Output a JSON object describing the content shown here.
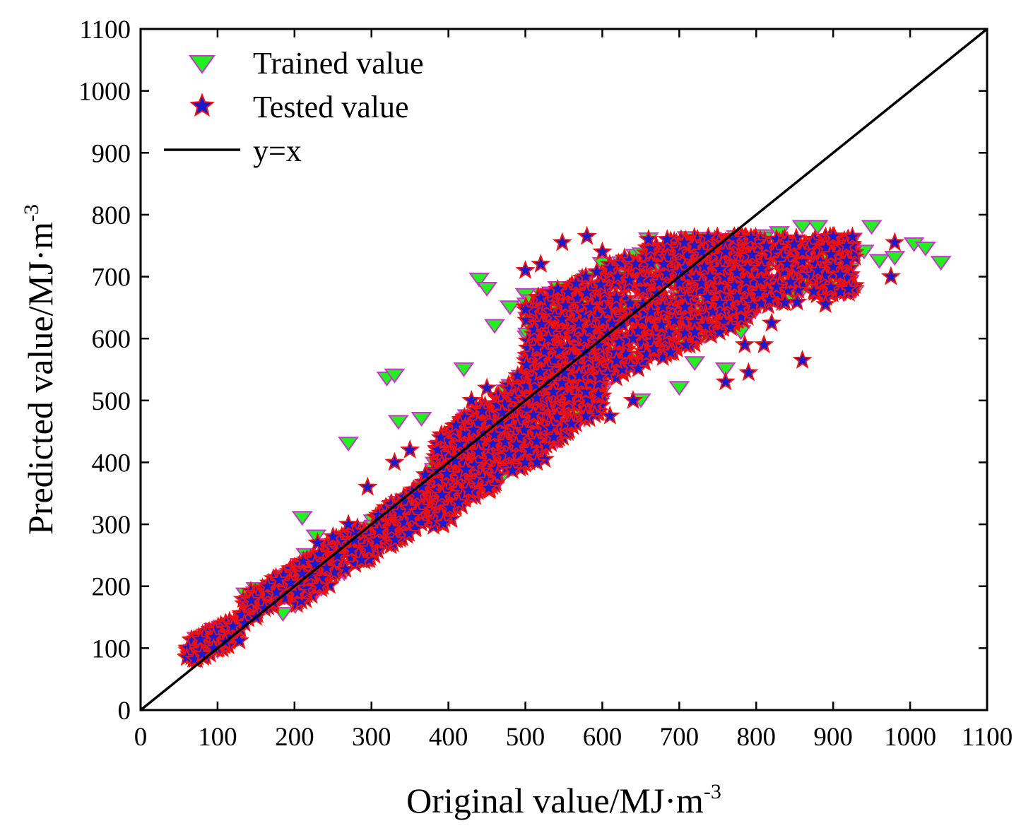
{
  "colors": {
    "trained_fill": "#22ee22",
    "trained_edge": "#cc33cc",
    "tested_fill": "#1a1acc",
    "tested_edge": "#ee1111",
    "line": "#000000",
    "axis": "#000000"
  },
  "chart_data": {
    "type": "scatter",
    "title": "",
    "xlabel": "Original value/MJ·m",
    "xlabel_sup": "-3",
    "ylabel": "Predicted value/MJ·m",
    "ylabel_sup": "-3",
    "xlim": [
      0,
      1100
    ],
    "ylim": [
      0,
      1100
    ],
    "xticks": [
      0,
      100,
      200,
      300,
      400,
      500,
      600,
      700,
      800,
      900,
      1000,
      1100
    ],
    "yticks": [
      0,
      100,
      200,
      300,
      400,
      500,
      600,
      700,
      800,
      900,
      1000,
      1100
    ],
    "grid": false,
    "legend_position": "top-left",
    "series": [
      {
        "name": "Trained value",
        "marker": "triangle-down",
        "note": "representative points (dense cloud)",
        "x": [
          65,
          80,
          100,
          105,
          150,
          185,
          210,
          215,
          228,
          255,
          270,
          320,
          335,
          375,
          380,
          420,
          440,
          450,
          460,
          480,
          500,
          520,
          560,
          600,
          650,
          700,
          720,
          760,
          780,
          800,
          810,
          830,
          850,
          860,
          880,
          900,
          920,
          940,
          950,
          960,
          980,
          1005,
          1020,
          1040,
          330,
          365,
          600,
          660,
          900,
          770
        ],
        "y": [
          85,
          90,
          95,
          130,
          195,
          155,
          310,
          250,
          280,
          215,
          430,
          535,
          465,
          330,
          345,
          550,
          695,
          680,
          620,
          650,
          670,
          440,
          610,
          520,
          500,
          520,
          560,
          550,
          610,
          650,
          765,
          770,
          690,
          780,
          780,
          760,
          750,
          740,
          780,
          725,
          730,
          752,
          745,
          722,
          540,
          470,
          720,
          760,
          730,
          620
        ]
      },
      {
        "name": "Tested value",
        "marker": "star",
        "note": "representative points (dense cloud)",
        "x": [
          60,
          70,
          80,
          95,
          110,
          120,
          135,
          150,
          165,
          180,
          195,
          210,
          230,
          250,
          270,
          295,
          310,
          330,
          350,
          370,
          390,
          410,
          430,
          450,
          470,
          490,
          500,
          520,
          530,
          548,
          560,
          580,
          600,
          620,
          640,
          660,
          680,
          700,
          720,
          740,
          760,
          780,
          790,
          810,
          820,
          840,
          860,
          880,
          900,
          920,
          975,
          980,
          860,
          890,
          525,
          515,
          610,
          640,
          760,
          785
        ],
        "y": [
          85,
          82,
          90,
          100,
          110,
          135,
          140,
          150,
          200,
          210,
          205,
          220,
          270,
          280,
          300,
          360,
          290,
          400,
          420,
          380,
          440,
          460,
          500,
          520,
          480,
          540,
          710,
          720,
          600,
          755,
          570,
          765,
          740,
          700,
          600,
          760,
          720,
          690,
          610,
          700,
          740,
          650,
          545,
          590,
          625,
          720,
          740,
          710,
          765,
          680,
          700,
          755,
          565,
          655,
          405,
          400,
          475,
          500,
          530,
          590
        ]
      },
      {
        "name": "y=x",
        "type": "line",
        "x": [
          0,
          1100
        ],
        "y": [
          0,
          1100
        ]
      }
    ]
  }
}
